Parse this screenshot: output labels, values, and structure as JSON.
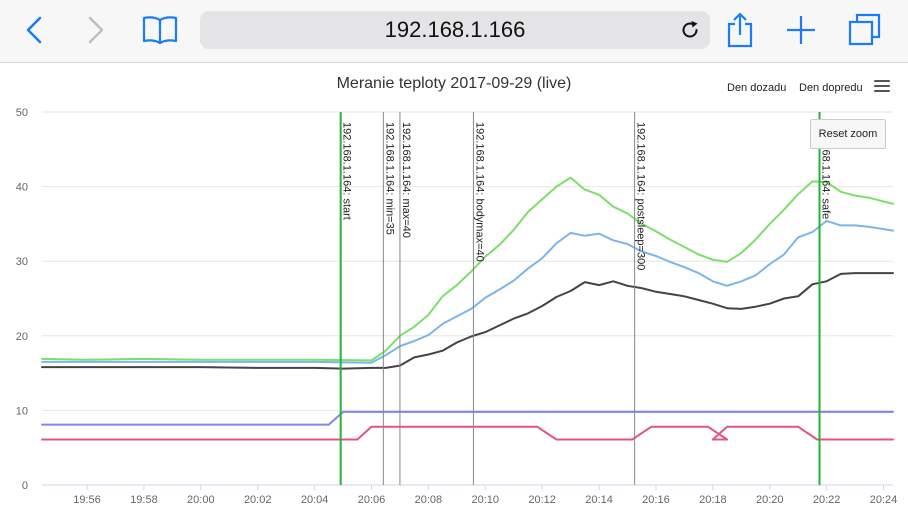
{
  "browser": {
    "url": "192.168.1.166"
  },
  "toolbar_icons": [
    "back-icon",
    "forward-icon",
    "bookmarks-icon",
    "reload-icon",
    "share-icon",
    "new-tab-icon",
    "tabs-icon"
  ],
  "chart_header": {
    "title": "Meranie teploty 2017-09-29 (live)",
    "nav_back": "Den dozadu",
    "nav_forward": "Den dopredu",
    "reset_zoom": "Reset zoom"
  },
  "chart_data": {
    "type": "line",
    "title": "Meranie teploty 2017-09-29 (live)",
    "xlabel": "",
    "ylabel": "",
    "ylim": [
      0,
      50
    ],
    "yticks": [
      0,
      10,
      20,
      30,
      40,
      50
    ],
    "xlim": [
      "19:54:25",
      "20:24:20"
    ],
    "xticks": [
      "19:56",
      "19:58",
      "20:00",
      "20:02",
      "20:04",
      "20:06",
      "20:08",
      "20:10",
      "20:12",
      "20:14",
      "20:16",
      "20:18",
      "20:20",
      "20:22",
      "20:24"
    ],
    "grid": "horizontal",
    "legend": "none",
    "series": [
      {
        "color": "#7be06a",
        "points": [
          [
            "19:54:25",
            16.9
          ],
          [
            "19:56:00",
            16.8
          ],
          [
            "19:58:00",
            16.9
          ],
          [
            "20:00:00",
            16.8
          ],
          [
            "20:02:00",
            16.8
          ],
          [
            "20:04:00",
            16.8
          ],
          [
            "20:06:00",
            16.7
          ],
          [
            "20:06:30",
            18.0
          ],
          [
            "20:07:00",
            20.0
          ],
          [
            "20:07:30",
            21.2
          ],
          [
            "20:08:00",
            22.8
          ],
          [
            "20:08:30",
            25.3
          ],
          [
            "20:09:00",
            26.8
          ],
          [
            "20:09:30",
            28.6
          ],
          [
            "20:10:00",
            30.6
          ],
          [
            "20:10:30",
            32.2
          ],
          [
            "20:11:00",
            34.2
          ],
          [
            "20:11:30",
            36.6
          ],
          [
            "20:12:00",
            38.3
          ],
          [
            "20:12:30",
            40.0
          ],
          [
            "20:13:00",
            41.2
          ],
          [
            "20:13:30",
            39.6
          ],
          [
            "20:14:00",
            38.9
          ],
          [
            "20:14:30",
            37.3
          ],
          [
            "20:15:00",
            36.4
          ],
          [
            "20:15:30",
            35.0
          ],
          [
            "20:16:00",
            34.0
          ],
          [
            "20:16:30",
            32.9
          ],
          [
            "20:17:00",
            31.9
          ],
          [
            "20:17:30",
            30.9
          ],
          [
            "20:18:00",
            30.2
          ],
          [
            "20:18:30",
            29.9
          ],
          [
            "20:19:00",
            31.1
          ],
          [
            "20:19:30",
            32.9
          ],
          [
            "20:20:00",
            35.0
          ],
          [
            "20:20:30",
            36.9
          ],
          [
            "20:21:00",
            39.0
          ],
          [
            "20:21:30",
            40.7
          ],
          [
            "20:22:00",
            40.6
          ],
          [
            "20:22:30",
            39.3
          ],
          [
            "20:23:00",
            38.8
          ],
          [
            "20:23:30",
            38.5
          ],
          [
            "20:24:20",
            37.7
          ]
        ]
      },
      {
        "color": "#7cb5ec",
        "points": [
          [
            "19:54:25",
            16.5
          ],
          [
            "19:56:00",
            16.5
          ],
          [
            "19:58:00",
            16.5
          ],
          [
            "20:00:00",
            16.5
          ],
          [
            "20:02:00",
            16.5
          ],
          [
            "20:04:00",
            16.5
          ],
          [
            "20:06:00",
            16.4
          ],
          [
            "20:06:30",
            17.4
          ],
          [
            "20:07:00",
            18.6
          ],
          [
            "20:07:30",
            19.3
          ],
          [
            "20:08:00",
            20.1
          ],
          [
            "20:08:30",
            21.6
          ],
          [
            "20:09:00",
            22.6
          ],
          [
            "20:09:30",
            23.6
          ],
          [
            "20:10:00",
            25.1
          ],
          [
            "20:10:30",
            26.2
          ],
          [
            "20:11:00",
            27.4
          ],
          [
            "20:11:30",
            29.0
          ],
          [
            "20:12:00",
            30.4
          ],
          [
            "20:12:30",
            32.4
          ],
          [
            "20:13:00",
            33.8
          ],
          [
            "20:13:30",
            33.4
          ],
          [
            "20:14:00",
            33.7
          ],
          [
            "20:14:30",
            32.8
          ],
          [
            "20:15:00",
            32.3
          ],
          [
            "20:15:30",
            31.3
          ],
          [
            "20:16:00",
            30.7
          ],
          [
            "20:16:30",
            29.9
          ],
          [
            "20:17:00",
            29.2
          ],
          [
            "20:17:30",
            28.4
          ],
          [
            "20:18:00",
            27.3
          ],
          [
            "20:18:30",
            26.7
          ],
          [
            "20:19:00",
            27.3
          ],
          [
            "20:19:30",
            28.1
          ],
          [
            "20:20:00",
            29.6
          ],
          [
            "20:20:30",
            30.9
          ],
          [
            "20:21:00",
            33.2
          ],
          [
            "20:21:30",
            33.9
          ],
          [
            "20:22:00",
            35.4
          ],
          [
            "20:22:30",
            34.8
          ],
          [
            "20:23:00",
            34.8
          ],
          [
            "20:23:30",
            34.6
          ],
          [
            "20:24:20",
            34.1
          ]
        ]
      },
      {
        "color": "#434348",
        "points": [
          [
            "19:54:25",
            15.8
          ],
          [
            "19:56:00",
            15.8
          ],
          [
            "19:58:00",
            15.8
          ],
          [
            "20:00:00",
            15.8
          ],
          [
            "20:02:00",
            15.7
          ],
          [
            "20:04:00",
            15.7
          ],
          [
            "20:05:00",
            15.6
          ],
          [
            "20:06:00",
            15.7
          ],
          [
            "20:06:30",
            15.7
          ],
          [
            "20:07:00",
            16.0
          ],
          [
            "20:07:30",
            17.1
          ],
          [
            "20:08:00",
            17.5
          ],
          [
            "20:08:30",
            18.0
          ],
          [
            "20:09:00",
            19.1
          ],
          [
            "20:09:30",
            19.9
          ],
          [
            "20:10:00",
            20.5
          ],
          [
            "20:10:30",
            21.4
          ],
          [
            "20:11:00",
            22.3
          ],
          [
            "20:11:30",
            23.0
          ],
          [
            "20:12:00",
            24.0
          ],
          [
            "20:12:30",
            25.2
          ],
          [
            "20:13:00",
            26.0
          ],
          [
            "20:13:30",
            27.2
          ],
          [
            "20:14:00",
            26.8
          ],
          [
            "20:14:30",
            27.3
          ],
          [
            "20:15:00",
            26.7
          ],
          [
            "20:15:30",
            26.4
          ],
          [
            "20:16:00",
            25.9
          ],
          [
            "20:16:30",
            25.6
          ],
          [
            "20:17:00",
            25.3
          ],
          [
            "20:17:30",
            24.8
          ],
          [
            "20:18:00",
            24.3
          ],
          [
            "20:18:30",
            23.7
          ],
          [
            "20:19:00",
            23.6
          ],
          [
            "20:19:30",
            23.9
          ],
          [
            "20:20:00",
            24.3
          ],
          [
            "20:20:30",
            25.0
          ],
          [
            "20:21:00",
            25.3
          ],
          [
            "20:21:30",
            26.9
          ],
          [
            "20:22:00",
            27.3
          ],
          [
            "20:22:30",
            28.3
          ],
          [
            "20:23:00",
            28.4
          ],
          [
            "20:24:20",
            28.4
          ]
        ]
      },
      {
        "color": "#8085e9",
        "points": [
          [
            "19:54:25",
            8.1
          ],
          [
            "20:04:30",
            8.1
          ],
          [
            "20:05:00",
            9.8
          ],
          [
            "20:24:20",
            9.8
          ]
        ]
      },
      {
        "color": "#e4547e",
        "points": [
          [
            "19:54:25",
            6.1
          ],
          [
            "20:04:55",
            6.1
          ],
          [
            "20:05:30",
            6.1
          ],
          [
            "20:06:00",
            7.8
          ],
          [
            "20:11:50",
            7.8
          ],
          [
            "20:12:30",
            6.1
          ],
          [
            "20:15:10",
            6.1
          ],
          [
            "20:15:50",
            7.8
          ],
          [
            "20:17:50",
            7.8
          ],
          [
            "20:18:30",
            6.1
          ],
          [
            "20:18:00",
            6.1
          ],
          [
            "20:18:30",
            7.8
          ],
          [
            "20:21:00",
            7.8
          ],
          [
            "20:21:40",
            6.1
          ],
          [
            "20:24:20",
            6.1
          ]
        ]
      }
    ],
    "annotations": [
      {
        "time": "20:04:55",
        "label": "192.168.1.164: start",
        "color": "#22b33a",
        "width": 2
      },
      {
        "time": "20:06:25",
        "label": "192.168.1.164: min=35",
        "color": "#888888",
        "width": 1
      },
      {
        "time": "20:07:00",
        "label": "192.168.1.164: max=40",
        "color": "#888888",
        "width": 1
      },
      {
        "time": "20:09:35",
        "label": "192.168.1.164: bodymax=40",
        "color": "#888888",
        "width": 1
      },
      {
        "time": "20:15:15",
        "label": "192.168.1.164: postsleep=300",
        "color": "#888888",
        "width": 1
      },
      {
        "time": "20:21:45",
        "label": "192.168.1.164: safe",
        "color": "#22b33a",
        "width": 2
      }
    ]
  }
}
